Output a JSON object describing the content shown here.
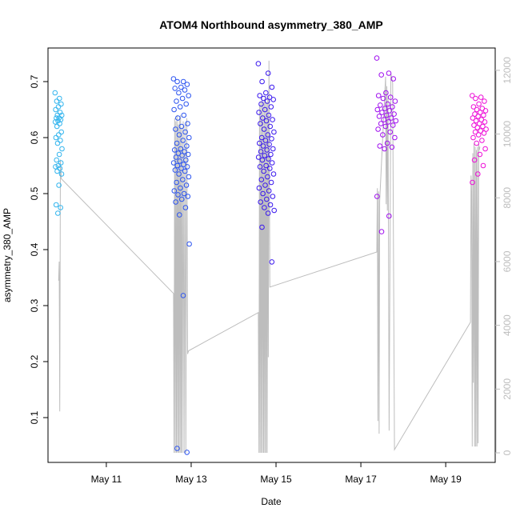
{
  "chart_data": {
    "type": "scatter",
    "title": "ATOM4 Northbound asymmetry_380_AMP",
    "xlabel": "Date",
    "ylabel": "asymmetry_380_AMP",
    "x_ticks": [
      "May 11",
      "May 13",
      "May 15",
      "May 17",
      "May 19"
    ],
    "y_ticks": [
      "0.1",
      "0.2",
      "0.3",
      "0.4",
      "0.5",
      "0.6",
      "0.7"
    ],
    "y2_ticks": [
      "0",
      "2000",
      "4000",
      "6000",
      "8000",
      "10000",
      "12000"
    ],
    "xlim": [
      "2024-05-09 15:00",
      "2024-05-20 04:00"
    ],
    "ylim": [
      0.02,
      0.76
    ],
    "y2lim": [
      -300,
      12700
    ],
    "grid": false,
    "colors": {
      "cluster1": "#33b5ee",
      "cluster2": "#2d55f0",
      "cluster3": "#3a18ee",
      "cluster4": "#a010ef",
      "cluster5": "#ee10d8",
      "secondary_line": "#bdbdbd",
      "frame": "#000000"
    },
    "clusters": [
      {
        "x_range": [
          "2024-05-09 19:00",
          "2024-05-09 23:00"
        ],
        "y": [
          0.68,
          0.67,
          0.665,
          0.66,
          0.655,
          0.65,
          0.645,
          0.64,
          0.64,
          0.635,
          0.635,
          0.632,
          0.63,
          0.628,
          0.625,
          0.62,
          0.61,
          0.605,
          0.6,
          0.595,
          0.59,
          0.58,
          0.57,
          0.56,
          0.555,
          0.55,
          0.548,
          0.545,
          0.54,
          0.535,
          0.515,
          0.48,
          0.475,
          0.465
        ]
      },
      {
        "x_range": [
          "2024-05-12 14:00",
          "2024-05-12 23:00"
        ],
        "y": [
          0.705,
          0.7,
          0.7,
          0.695,
          0.69,
          0.688,
          0.685,
          0.68,
          0.675,
          0.67,
          0.665,
          0.66,
          0.655,
          0.65,
          0.64,
          0.635,
          0.625,
          0.62,
          0.615,
          0.61,
          0.605,
          0.6,
          0.595,
          0.59,
          0.585,
          0.58,
          0.578,
          0.575,
          0.572,
          0.57,
          0.568,
          0.565,
          0.56,
          0.558,
          0.555,
          0.552,
          0.55,
          0.548,
          0.545,
          0.542,
          0.54,
          0.535,
          0.53,
          0.525,
          0.52,
          0.515,
          0.51,
          0.505,
          0.5,
          0.498,
          0.495,
          0.49,
          0.485,
          0.475,
          0.462,
          0.41,
          0.318,
          0.045,
          0.038
        ]
      },
      {
        "x_range": [
          "2024-05-14 14:00",
          "2024-05-14 23:00"
        ],
        "y": [
          0.732,
          0.715,
          0.7,
          0.69,
          0.68,
          0.675,
          0.672,
          0.67,
          0.668,
          0.665,
          0.66,
          0.655,
          0.65,
          0.645,
          0.64,
          0.635,
          0.632,
          0.63,
          0.625,
          0.62,
          0.615,
          0.61,
          0.605,
          0.6,
          0.598,
          0.595,
          0.59,
          0.588,
          0.585,
          0.58,
          0.578,
          0.575,
          0.57,
          0.568,
          0.565,
          0.562,
          0.56,
          0.555,
          0.55,
          0.548,
          0.545,
          0.54,
          0.535,
          0.53,
          0.525,
          0.52,
          0.515,
          0.51,
          0.505,
          0.5,
          0.495,
          0.49,
          0.485,
          0.48,
          0.475,
          0.47,
          0.465,
          0.44,
          0.378
        ]
      },
      {
        "x_range": [
          "2024-05-17 09:00",
          "2024-05-17 20:00"
        ],
        "y": [
          0.742,
          0.715,
          0.712,
          0.705,
          0.68,
          0.675,
          0.672,
          0.67,
          0.665,
          0.66,
          0.658,
          0.655,
          0.652,
          0.65,
          0.648,
          0.645,
          0.642,
          0.64,
          0.638,
          0.635,
          0.632,
          0.63,
          0.628,
          0.625,
          0.622,
          0.62,
          0.615,
          0.61,
          0.605,
          0.6,
          0.59,
          0.585,
          0.583,
          0.58,
          0.495,
          0.46,
          0.432
        ]
      },
      {
        "x_range": [
          "2024-05-19 15:00",
          "2024-05-19 23:00"
        ],
        "y": [
          0.675,
          0.672,
          0.67,
          0.665,
          0.66,
          0.655,
          0.652,
          0.65,
          0.648,
          0.645,
          0.642,
          0.64,
          0.638,
          0.635,
          0.632,
          0.63,
          0.628,
          0.625,
          0.622,
          0.62,
          0.618,
          0.615,
          0.612,
          0.61,
          0.608,
          0.605,
          0.6,
          0.595,
          0.59,
          0.58,
          0.57,
          0.56,
          0.55,
          0.535,
          0.52
        ]
      }
    ],
    "secondary_series": {
      "name": "",
      "axis": "right",
      "points": [
        [
          "2024-05-09 21:00",
          5400
        ],
        [
          "2024-05-09 21:20",
          6000
        ],
        [
          "2024-05-09 21:40",
          1300
        ],
        [
          "2024-05-09 22:00",
          9200
        ],
        [
          "2024-05-09 22:30",
          8600
        ],
        [
          "2024-05-12 14:00",
          5000
        ],
        [
          "2024-05-12 14:20",
          0
        ],
        [
          "2024-05-12 14:40",
          10500
        ],
        [
          "2024-05-12 15:00",
          0
        ],
        [
          "2024-05-12 15:20",
          10400
        ],
        [
          "2024-05-12 15:40",
          0
        ],
        [
          "2024-05-12 16:00",
          10600
        ],
        [
          "2024-05-12 16:20",
          0
        ],
        [
          "2024-05-12 16:40",
          10300
        ],
        [
          "2024-05-12 17:00",
          0
        ],
        [
          "2024-05-12 17:20",
          10500
        ],
        [
          "2024-05-12 17:40",
          0
        ],
        [
          "2024-05-12 18:00",
          10600
        ],
        [
          "2024-05-12 18:20",
          0
        ],
        [
          "2024-05-12 18:40",
          10200
        ],
        [
          "2024-05-12 19:00",
          0
        ],
        [
          "2024-05-12 19:30",
          10400
        ],
        [
          "2024-05-12 20:00",
          0
        ],
        [
          "2024-05-12 20:30",
          10300
        ],
        [
          "2024-05-12 21:00",
          0
        ],
        [
          "2024-05-12 21:30",
          10500
        ],
        [
          "2024-05-12 22:00",
          3100
        ],
        [
          "2024-05-12 22:30",
          3200
        ],
        [
          "2024-05-14 14:00",
          4400
        ],
        [
          "2024-05-14 14:20",
          0
        ],
        [
          "2024-05-14 14:40",
          10900
        ],
        [
          "2024-05-14 15:00",
          0
        ],
        [
          "2024-05-14 15:20",
          11000
        ],
        [
          "2024-05-14 15:40",
          0
        ],
        [
          "2024-05-14 16:00",
          11200
        ],
        [
          "2024-05-14 16:20",
          0
        ],
        [
          "2024-05-14 16:40",
          11000
        ],
        [
          "2024-05-14 17:00",
          0
        ],
        [
          "2024-05-14 17:20",
          11100
        ],
        [
          "2024-05-14 17:40",
          0
        ],
        [
          "2024-05-14 18:00",
          11200
        ],
        [
          "2024-05-14 18:20",
          0
        ],
        [
          "2024-05-14 18:40",
          11000
        ],
        [
          "2024-05-14 19:00",
          0
        ],
        [
          "2024-05-14 19:20",
          11100
        ],
        [
          "2024-05-14 19:40",
          3000
        ],
        [
          "2024-05-14 20:00",
          12300
        ],
        [
          "2024-05-14 20:30",
          5200
        ],
        [
          "2024-05-17 09:00",
          6300
        ],
        [
          "2024-05-17 09:20",
          8300
        ],
        [
          "2024-05-17 09:40",
          1000
        ],
        [
          "2024-05-17 10:00",
          8200
        ],
        [
          "2024-05-17 10:20",
          600
        ],
        [
          "2024-05-17 10:40",
          7900
        ],
        [
          "2024-05-17 14:00",
          11800
        ],
        [
          "2024-05-17 14:20",
          7800
        ],
        [
          "2024-05-17 14:40",
          11500
        ],
        [
          "2024-05-17 15:00",
          7600
        ],
        [
          "2024-05-17 15:20",
          11200
        ],
        [
          "2024-05-17 16:00",
          700
        ],
        [
          "2024-05-17 17:00",
          11900
        ],
        [
          "2024-05-17 18:00",
          11600
        ],
        [
          "2024-05-17 19:00",
          100
        ],
        [
          "2024-05-19 14:00",
          4100
        ],
        [
          "2024-05-19 14:20",
          8700
        ],
        [
          "2024-05-19 14:40",
          8200
        ],
        [
          "2024-05-19 15:00",
          200
        ],
        [
          "2024-05-19 15:20",
          9400
        ],
        [
          "2024-05-19 15:40",
          2200
        ],
        [
          "2024-05-19 16:00",
          9700
        ],
        [
          "2024-05-19 16:20",
          200
        ],
        [
          "2024-05-19 16:40",
          9600
        ],
        [
          "2024-05-19 17:00",
          200
        ],
        [
          "2024-05-19 17:20",
          9500
        ],
        [
          "2024-05-19 17:40",
          200
        ],
        [
          "2024-05-19 18:00",
          9600
        ],
        [
          "2024-05-19 18:20",
          300
        ],
        [
          "2024-05-19 18:40",
          9700
        ],
        [
          "2024-05-19 19:00",
          9500
        ],
        [
          "2024-05-19 19:20",
          9600
        ]
      ]
    }
  }
}
